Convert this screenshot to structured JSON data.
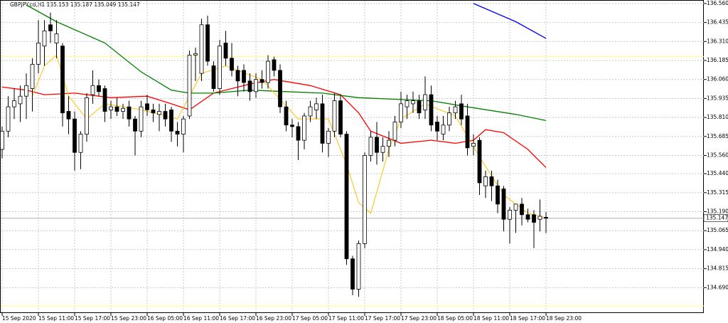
{
  "chart_data": {
    "type": "candlestick",
    "title": "GBPJPY.cd,H1  135.153 135.187 135.049 135.147",
    "categories": [
      "15 Sep 2020",
      null,
      null,
      null,
      null,
      null,
      "15 Sep 11:00",
      null,
      null,
      null,
      null,
      null,
      "15 Sep 17:00",
      null,
      null,
      null,
      null,
      null,
      "15 Sep 23:00",
      null,
      null,
      null,
      null,
      null,
      "16 Sep 05:00",
      null,
      null,
      null,
      null,
      null,
      "16 Sep 11:00",
      null,
      null,
      null,
      null,
      null,
      "16 Sep 17:00",
      null,
      null,
      null,
      null,
      null,
      "16 Sep 23:00",
      null,
      null,
      null,
      null,
      null,
      "17 Sep 05:00",
      null,
      null,
      null,
      null,
      null,
      "17 Sep 11:00",
      null,
      null,
      null,
      null,
      null,
      "17 Sep 17:00",
      null,
      null,
      null,
      null,
      null,
      "17 Sep 23:00",
      null,
      null,
      null,
      null,
      null,
      "18 Sep 05:00",
      null,
      null,
      null,
      null,
      null,
      "18 Sep 11:00",
      null,
      null,
      null,
      null,
      null,
      "18 Sep 17:00",
      null,
      null,
      null,
      null,
      null,
      "18 Sep 23:00"
    ],
    "ohlc": [
      [
        135.6,
        135.75,
        135.54,
        135.72
      ],
      [
        135.72,
        135.95,
        135.68,
        135.88
      ],
      [
        135.88,
        136.0,
        135.8,
        135.92
      ],
      [
        135.9,
        136.02,
        135.78,
        135.95
      ],
      [
        135.95,
        136.1,
        135.8,
        136.02
      ],
      [
        136.0,
        136.2,
        135.85,
        136.16
      ],
      [
        136.16,
        136.45,
        136.1,
        136.3
      ],
      [
        136.28,
        136.45,
        136.15,
        136.38
      ],
      [
        136.42,
        136.5,
        136.3,
        136.38
      ],
      [
        136.3,
        136.45,
        136.2,
        136.36
      ],
      [
        136.28,
        136.3,
        135.75,
        135.84
      ],
      [
        135.85,
        135.95,
        135.7,
        135.8
      ],
      [
        135.8,
        135.85,
        135.46,
        135.58
      ],
      [
        135.58,
        135.72,
        135.47,
        135.7
      ],
      [
        135.7,
        135.97,
        135.65,
        135.94
      ],
      [
        135.96,
        136.12,
        135.9,
        136.02
      ],
      [
        136.02,
        136.06,
        135.95,
        135.98
      ],
      [
        136.0,
        136.02,
        135.78,
        135.85
      ],
      [
        135.86,
        135.92,
        135.8,
        135.88
      ],
      [
        135.88,
        135.94,
        135.82,
        135.85
      ],
      [
        135.85,
        135.9,
        135.8,
        135.87
      ],
      [
        135.88,
        135.92,
        135.75,
        135.8
      ],
      [
        135.8,
        135.82,
        135.56,
        135.72
      ],
      [
        135.72,
        135.92,
        135.68,
        135.88
      ],
      [
        135.9,
        135.96,
        135.82,
        135.86
      ],
      [
        135.86,
        135.9,
        135.78,
        135.84
      ],
      [
        135.83,
        135.9,
        135.72,
        135.85
      ],
      [
        135.85,
        135.9,
        135.75,
        135.8
      ],
      [
        135.86,
        135.88,
        135.65,
        135.72
      ],
      [
        135.72,
        135.78,
        135.62,
        135.7
      ],
      [
        135.7,
        135.82,
        135.58,
        135.8
      ],
      [
        135.82,
        136.25,
        135.8,
        136.22
      ],
      [
        136.22,
        136.27,
        136.05,
        136.23
      ],
      [
        136.1,
        136.46,
        136.05,
        136.42
      ],
      [
        136.42,
        136.48,
        136.15,
        136.18
      ],
      [
        136.15,
        136.18,
        135.98,
        136.0
      ],
      [
        136.0,
        136.32,
        135.96,
        136.28
      ],
      [
        136.3,
        136.38,
        136.15,
        136.2
      ],
      [
        136.2,
        136.3,
        136.08,
        136.12
      ],
      [
        136.12,
        136.15,
        135.95,
        136.05
      ],
      [
        136.12,
        136.16,
        135.98,
        136.04
      ],
      [
        136.05,
        136.1,
        135.92,
        135.98
      ],
      [
        135.98,
        136.1,
        135.94,
        136.06
      ],
      [
        136.06,
        136.12,
        136.0,
        136.04
      ],
      [
        136.04,
        136.22,
        136.0,
        136.18
      ],
      [
        136.19,
        136.21,
        136.08,
        136.12
      ],
      [
        136.12,
        136.16,
        135.84,
        135.88
      ],
      [
        135.88,
        135.92,
        135.72,
        135.76
      ],
      [
        135.76,
        135.8,
        135.68,
        135.75
      ],
      [
        135.75,
        135.78,
        135.53,
        135.66
      ],
      [
        135.66,
        135.84,
        135.6,
        135.82
      ],
      [
        135.82,
        135.92,
        135.78,
        135.88
      ],
      [
        135.86,
        135.94,
        135.8,
        135.9
      ],
      [
        135.9,
        135.96,
        135.58,
        135.64
      ],
      [
        135.64,
        135.74,
        135.55,
        135.72
      ],
      [
        135.72,
        135.97,
        135.68,
        135.92
      ],
      [
        135.92,
        135.96,
        135.68,
        135.7
      ],
      [
        135.7,
        135.72,
        134.84,
        134.88
      ],
      [
        134.88,
        134.9,
        134.64,
        134.68
      ],
      [
        134.68,
        135.0,
        134.63,
        134.98
      ],
      [
        134.98,
        135.58,
        134.95,
        135.56
      ],
      [
        135.56,
        135.72,
        135.52,
        135.68
      ],
      [
        135.68,
        135.78,
        135.5,
        135.58
      ],
      [
        135.58,
        135.68,
        135.52,
        135.62
      ],
      [
        135.62,
        135.72,
        135.55,
        135.66
      ],
      [
        135.66,
        135.82,
        135.62,
        135.78
      ],
      [
        135.78,
        135.98,
        135.74,
        135.9
      ],
      [
        135.88,
        135.96,
        135.8,
        135.92
      ],
      [
        135.9,
        135.98,
        135.84,
        135.92
      ],
      [
        135.92,
        135.96,
        135.8,
        135.84
      ],
      [
        135.86,
        136.08,
        135.8,
        135.96
      ],
      [
        135.96,
        136.02,
        135.72,
        135.76
      ],
      [
        135.78,
        135.82,
        135.66,
        135.72
      ],
      [
        135.7,
        135.82,
        135.66,
        135.76
      ],
      [
        135.76,
        135.88,
        135.72,
        135.84
      ],
      [
        135.84,
        135.92,
        135.8,
        135.88
      ],
      [
        135.9,
        135.96,
        135.76,
        135.8
      ],
      [
        135.82,
        135.9,
        135.56,
        135.61
      ],
      [
        135.62,
        135.7,
        135.56,
        135.64
      ],
      [
        135.66,
        135.68,
        135.3,
        135.38
      ],
      [
        135.36,
        135.46,
        135.28,
        135.42
      ],
      [
        135.42,
        135.46,
        135.26,
        135.36
      ],
      [
        135.36,
        135.4,
        135.18,
        135.24
      ],
      [
        135.34,
        135.36,
        135.06,
        135.14
      ],
      [
        135.14,
        135.22,
        134.98,
        135.2
      ],
      [
        135.2,
        135.24,
        135.05,
        135.24
      ],
      [
        135.24,
        135.28,
        135.1,
        135.17
      ],
      [
        135.17,
        135.21,
        135.12,
        135.14
      ],
      [
        135.17,
        135.2,
        134.95,
        135.12
      ],
      [
        135.14,
        135.27,
        135.06,
        135.16
      ],
      [
        135.153,
        135.187,
        135.049,
        135.147
      ]
    ],
    "series": [
      {
        "color": "#ff0000",
        "x": [
          0,
          4,
          7,
          12,
          18,
          24,
          28,
          31,
          35,
          41,
          45,
          51,
          56,
          59,
          61,
          66,
          71,
          75,
          78,
          80,
          83,
          87,
          90
        ],
        "values": [
          136.01,
          135.99,
          135.96,
          135.97,
          135.94,
          135.95,
          135.9,
          135.86,
          135.97,
          136.03,
          136.06,
          136.02,
          135.96,
          135.84,
          135.72,
          135.64,
          135.66,
          135.64,
          135.66,
          135.73,
          135.71,
          135.6,
          135.48
        ]
      },
      {
        "color": "#008000",
        "x": [
          4,
          9,
          17,
          23,
          28,
          31,
          35,
          41,
          47,
          53,
          59,
          65,
          71,
          77,
          85,
          90
        ],
        "values": [
          136.55,
          136.44,
          136.3,
          136.11,
          135.99,
          135.97,
          135.97,
          135.99,
          135.98,
          135.97,
          135.94,
          135.93,
          135.92,
          135.88,
          135.83,
          135.79
        ]
      },
      {
        "color": "#0000ff",
        "x": [
          78,
          85,
          90
        ],
        "values": [
          136.56,
          136.44,
          136.33
        ]
      },
      {
        "color": "#ffc000",
        "x": [
          5,
          7,
          9,
          11,
          14,
          17,
          23,
          29,
          33,
          37,
          43,
          49,
          54,
          57,
          59,
          61,
          64,
          66,
          70,
          75,
          79,
          83,
          87,
          90
        ],
        "values": [
          135.95,
          136.15,
          136.22,
          135.95,
          135.8,
          135.9,
          135.86,
          135.8,
          136.1,
          136.15,
          136.06,
          135.8,
          135.8,
          135.5,
          135.25,
          135.18,
          135.6,
          135.8,
          135.9,
          135.82,
          135.55,
          135.3,
          135.18,
          135.15
        ]
      }
    ],
    "hlines": [
      {
        "value": 136.21,
        "color": "#ffff80"
      },
      {
        "value": 134.57,
        "color": "#ffff80"
      }
    ],
    "current_price": 135.147,
    "ylim": [
      134.523,
      136.583
    ],
    "yticks": [
      {
        "value": 136.56,
        "label": "136.560"
      },
      {
        "value": 136.435,
        "label": "136.435"
      },
      {
        "value": 136.31,
        "label": "136.310"
      },
      {
        "value": 136.185,
        "label": "136.185"
      },
      {
        "value": 136.06,
        "label": "136.060"
      },
      {
        "value": 135.935,
        "label": "135.935"
      },
      {
        "value": 135.81,
        "label": "135.810"
      },
      {
        "value": 135.685,
        "label": "135.685"
      },
      {
        "value": 135.56,
        "label": "135.560"
      },
      {
        "value": 135.44,
        "label": "135.440"
      },
      {
        "value": 135.315,
        "label": "135.315"
      },
      {
        "value": 135.19,
        "label": "135.190"
      },
      {
        "value": 135.065,
        "label": "135.065"
      },
      {
        "value": 134.94,
        "label": "134.940"
      },
      {
        "value": 134.815,
        "label": "134.815"
      },
      {
        "value": 134.69,
        "label": "134.690"
      }
    ],
    "grid": true
  }
}
